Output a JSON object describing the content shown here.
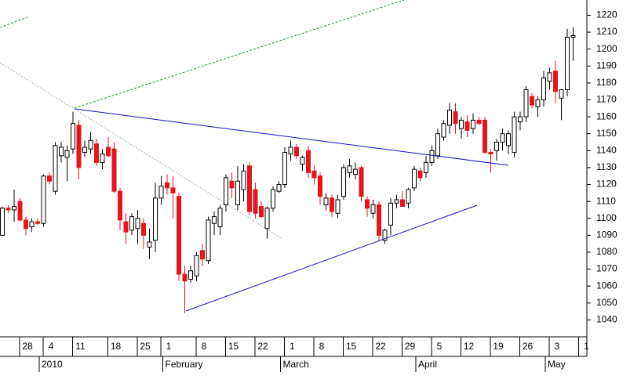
{
  "chart_data": {
    "type": "candlestick",
    "up_color": "#ffffff",
    "down_color": "#e8141c",
    "ylim": [
      1030,
      1229
    ],
    "yticks": [
      1040,
      1050,
      1060,
      1070,
      1080,
      1090,
      1100,
      1110,
      1120,
      1130,
      1140,
      1150,
      1160,
      1170,
      1180,
      1190,
      1200,
      1210,
      1220
    ],
    "categories": [
      null,
      null,
      null,
      null,
      "28",
      null,
      null,
      null,
      "4",
      null,
      null,
      null,
      null,
      "11",
      null,
      null,
      null,
      null,
      null,
      "18",
      null,
      null,
      null,
      null,
      "25",
      null,
      null,
      null,
      "1",
      null,
      null,
      null,
      null,
      null,
      "8",
      null,
      null,
      null,
      null,
      "15",
      null,
      null,
      null,
      null,
      "22",
      null,
      null,
      null,
      null,
      "1",
      null,
      null,
      null,
      null,
      "8",
      null,
      null,
      null,
      null,
      "15",
      null,
      null,
      null,
      null,
      "22",
      null,
      null,
      null,
      null,
      "29",
      null,
      null,
      null,
      null,
      "5",
      null,
      null,
      null,
      null,
      "12",
      null,
      null,
      null,
      null,
      "19",
      null,
      null,
      null,
      null,
      "26",
      null,
      null,
      null,
      null,
      "3",
      null,
      null,
      null,
      null,
      "1"
    ],
    "months": [
      null,
      null,
      null,
      null,
      null,
      null,
      null,
      null,
      "2010",
      null,
      null,
      null,
      null,
      null,
      null,
      null,
      null,
      null,
      null,
      null,
      null,
      null,
      null,
      null,
      null,
      null,
      null,
      null,
      null,
      "February",
      null,
      null,
      null,
      null,
      null,
      null,
      null,
      null,
      null,
      null,
      null,
      null,
      null,
      null,
      null,
      null,
      null,
      null,
      null,
      "March",
      null,
      null,
      null,
      null,
      null,
      null,
      null,
      null,
      null,
      null,
      null,
      null,
      null,
      null,
      null,
      null,
      null,
      null,
      null,
      null,
      null,
      null,
      "April",
      null,
      null,
      null,
      null,
      null,
      null,
      null,
      null,
      null,
      null,
      null,
      null,
      null,
      null,
      null,
      null,
      null,
      null,
      null,
      null,
      null,
      "May",
      null,
      null,
      null,
      null,
      null
    ],
    "open": [
      1090,
      1106,
      1105,
      1110,
      1099,
      1095,
      1098,
      1097,
      1125,
      1116,
      1137,
      1136,
      1141,
      1155,
      1139,
      1141,
      1144,
      1133,
      1142,
      1141,
      1116,
      1098,
      1093,
      1094,
      1097,
      1083,
      1087,
      1112,
      1121,
      1118,
      1113,
      1067,
      1064,
      1066,
      1081,
      1075,
      1097,
      1095,
      1108,
      1122,
      1108,
      1117,
      1131,
      1117,
      1107,
      1094,
      1106,
      1116,
      1120,
      1138,
      1142,
      1132,
      1140,
      1128,
      1125,
      1108,
      1112,
      1103,
      1113,
      1127,
      1126,
      1130,
      1111,
      1103,
      1108,
      1087,
      1096,
      1109,
      1111,
      1109,
      1118,
      1128,
      1127,
      1133,
      1137,
      1148,
      1155,
      1163,
      1153,
      1157,
      1153,
      1158,
      1158,
      1139,
      1140,
      1145,
      1143,
      1139,
      1157,
      1160,
      1172,
      1166,
      1170,
      1181,
      1187,
      1171,
      1176,
      1207,
      null,
      null
    ],
    "high": [
      1107,
      1108,
      1117,
      1112,
      1101,
      1100,
      1100,
      1126,
      1127,
      1145,
      1145,
      1143,
      1163,
      1158,
      1146,
      1151,
      1147,
      1141,
      1148,
      1145,
      1118,
      1103,
      1103,
      1105,
      1100,
      1094,
      1121,
      1125,
      1126,
      1125,
      1115,
      1072,
      1072,
      1080,
      1085,
      1101,
      1104,
      1108,
      1126,
      1127,
      1131,
      1132,
      1133,
      1121,
      1110,
      1107,
      1119,
      1122,
      1142,
      1146,
      1144,
      1137,
      1143,
      1131,
      1127,
      1115,
      1114,
      1114,
      1132,
      1135,
      1133,
      1131,
      1113,
      1111,
      1110,
      1094,
      1112,
      1114,
      1116,
      1118,
      1131,
      1130,
      1137,
      1143,
      1153,
      1158,
      1168,
      1168,
      1160,
      1161,
      1162,
      1160,
      1160,
      1141,
      1147,
      1153,
      1152,
      1163,
      1163,
      1178,
      1174,
      1172,
      1187,
      1189,
      1193,
      1176,
      1212,
      1213,
      null,
      null
    ],
    "low": [
      1090,
      1103,
      1098,
      1098,
      1090,
      1092,
      1096,
      1095,
      1120,
      1114,
      1133,
      1122,
      1138,
      1123,
      1136,
      1138,
      1131,
      1129,
      1136,
      1115,
      1093,
      1085,
      1090,
      1085,
      1082,
      1076,
      1080,
      1108,
      1114,
      1100,
      1063,
      1044,
      1062,
      1063,
      1072,
      1073,
      1090,
      1090,
      1104,
      1112,
      1105,
      1110,
      1102,
      1100,
      1100,
      1088,
      1104,
      1115,
      1118,
      1134,
      1135,
      1128,
      1124,
      1120,
      1108,
      1105,
      1101,
      1100,
      1111,
      1124,
      1123,
      1110,
      1101,
      1100,
      1087,
      1085,
      1090,
      1106,
      1107,
      1106,
      1116,
      1122,
      1124,
      1131,
      1135,
      1146,
      1150,
      1150,
      1147,
      1148,
      1150,
      1155,
      1138,
      1127,
      1134,
      1140,
      1138,
      1136,
      1152,
      1157,
      1165,
      1160,
      1166,
      1176,
      1168,
      1158,
      1172,
      1193,
      null,
      null
    ],
    "close": [
      1106,
      1105,
      1107,
      1099,
      1094,
      1098,
      1097,
      1125,
      1122,
      1143,
      1142,
      1140,
      1156,
      1130,
      1142,
      1146,
      1133,
      1138,
      1137,
      1116,
      1099,
      1092,
      1101,
      1100,
      1090,
      1086,
      1112,
      1119,
      1118,
      1115,
      1067,
      1063,
      1069,
      1078,
      1076,
      1099,
      1101,
      1106,
      1124,
      1118,
      1122,
      1128,
      1104,
      1103,
      1101,
      1106,
      1117,
      1120,
      1139,
      1142,
      1137,
      1136,
      1127,
      1124,
      1113,
      1112,
      1104,
      1111,
      1130,
      1131,
      1129,
      1113,
      1106,
      1108,
      1090,
      1093,
      1109,
      1111,
      1107,
      1117,
      1129,
      1124,
      1133,
      1140,
      1150,
      1156,
      1164,
      1156,
      1158,
      1152,
      1158,
      1156,
      1139,
      1138,
      1145,
      1150,
      1150,
      1160,
      1160,
      1176,
      1167,
      1170,
      1183,
      1186,
      1175,
      1176,
      1207,
      1208,
      null,
      null
    ]
  }
}
